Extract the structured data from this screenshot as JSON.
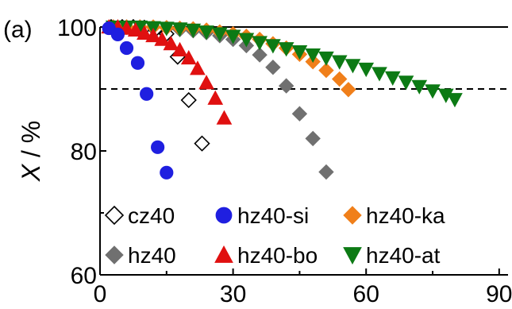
{
  "chart_data": {
    "type": "scatter",
    "panel_label": "(a)",
    "xlabel": "",
    "ylabel": {
      "italic": "X",
      "rest": " / %"
    },
    "xlim": [
      0,
      92
    ],
    "ylim": [
      60,
      100
    ],
    "xticks": [
      0,
      30,
      60,
      90
    ],
    "yticks": [
      60,
      80,
      100
    ],
    "xtick_labels": [
      "0",
      "30",
      "60",
      "90"
    ],
    "ytick_labels": [
      "60",
      "80",
      "100"
    ],
    "reference_line": {
      "y": 90,
      "style": "dashed"
    },
    "grid": false,
    "legend_position": "bottom-left inside",
    "series": [
      {
        "name": "cz40",
        "marker": "diamond-open",
        "color": "#000000",
        "fill": "#ffffff",
        "x": [
          2.5,
          5,
          7.5,
          10,
          12.5,
          15,
          17.5,
          20,
          23
        ],
        "y": [
          100,
          100,
          100,
          99.9,
          99.6,
          98.9,
          95.2,
          88.2,
          81.2
        ]
      },
      {
        "name": "hz40",
        "marker": "diamond",
        "color": "#707070",
        "fill": "#707070",
        "x": [
          3,
          6,
          9,
          12,
          15,
          18,
          21,
          24,
          27,
          30,
          33,
          36,
          39,
          42,
          45,
          48,
          51
        ],
        "y": [
          100,
          100,
          100,
          99.9,
          99.8,
          99.6,
          99.4,
          99.1,
          98.6,
          98,
          97,
          95.5,
          93.5,
          90.5,
          86,
          82,
          76.6
        ]
      },
      {
        "name": "hz40-si",
        "marker": "circle",
        "color": "#1f1fe0",
        "fill": "#1f1fe0",
        "x": [
          2,
          4,
          6,
          8.5,
          10.5,
          13,
          15
        ],
        "y": [
          99.8,
          98.8,
          96.6,
          94.2,
          89.2,
          80.6,
          76.5
        ]
      },
      {
        "name": "hz40-bo",
        "marker": "triangle-up",
        "color": "#e01010",
        "fill": "#e01010",
        "x": [
          2,
          4,
          6,
          8,
          10,
          12,
          14,
          16,
          18,
          20,
          22,
          24,
          26,
          28
        ],
        "y": [
          100,
          100,
          99.8,
          99.5,
          99,
          98.6,
          98,
          97.3,
          96.3,
          95,
          93.3,
          91,
          88.5,
          85.3
        ]
      },
      {
        "name": "hz40-ka",
        "marker": "diamond",
        "color": "#f07f1a",
        "fill": "#f07f1a",
        "x": [
          3,
          6,
          9,
          12,
          15,
          18,
          21,
          24,
          27,
          30,
          33,
          36,
          39,
          42,
          45,
          48,
          51,
          54,
          56
        ],
        "y": [
          100,
          100,
          100,
          100,
          99.9,
          99.8,
          99.7,
          99.5,
          99.2,
          98.9,
          98.5,
          98,
          97.3,
          96.6,
          95.6,
          94.4,
          93,
          91.6,
          89.9
        ]
      },
      {
        "name": "hz40-at",
        "marker": "triangle-down",
        "color": "#0c7a14",
        "fill": "#0c7a14",
        "x": [
          3,
          6,
          9,
          12,
          15,
          18,
          21,
          24,
          27,
          30,
          33,
          36,
          39,
          42,
          45,
          48,
          51,
          54,
          57,
          60,
          63,
          66,
          69,
          72,
          75,
          78,
          80
        ],
        "y": [
          100,
          100,
          100,
          99.9,
          99.8,
          99.7,
          99.5,
          99.2,
          98.9,
          98.5,
          98,
          97.5,
          97,
          96.5,
          96,
          95.5,
          95,
          94.4,
          93.8,
          93.2,
          92.5,
          91.8,
          91.1,
          90.4,
          89.7,
          89,
          88.3
        ]
      }
    ]
  }
}
